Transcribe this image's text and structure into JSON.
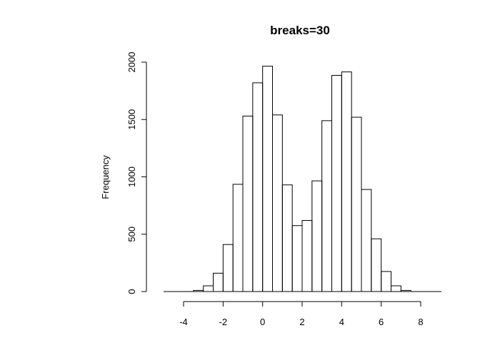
{
  "chart_data": {
    "type": "histogram",
    "title": "breaks=30",
    "xlabel": "",
    "ylabel": "Frequency",
    "bin_width": 0.5,
    "bin_edges": [
      -3.5,
      -3.0,
      -2.5,
      -2.0,
      -1.5,
      -1.0,
      -0.5,
      0.0,
      0.5,
      1.0,
      1.5,
      2.0,
      2.5,
      3.0,
      3.5,
      4.0,
      4.5,
      5.0,
      5.5,
      6.0,
      6.5,
      7.0,
      7.5
    ],
    "counts": [
      10,
      50,
      160,
      410,
      935,
      1530,
      1820,
      1965,
      1540,
      930,
      575,
      620,
      965,
      1490,
      1885,
      1915,
      1520,
      890,
      460,
      175,
      50,
      10
    ],
    "xlim": [
      -5,
      9
    ],
    "ylim": [
      0,
      2000
    ],
    "x_ticks": [
      -4,
      -2,
      0,
      2,
      4,
      6,
      8
    ],
    "x_tick_labels": [
      "-4",
      "-2",
      "0",
      "2",
      "4",
      "6",
      "8"
    ],
    "y_ticks": [
      0,
      500,
      1000,
      1500,
      2000
    ],
    "y_tick_labels": [
      "0",
      "500",
      "1000",
      "1500",
      "2000"
    ],
    "grid": false,
    "legend": "none"
  }
}
